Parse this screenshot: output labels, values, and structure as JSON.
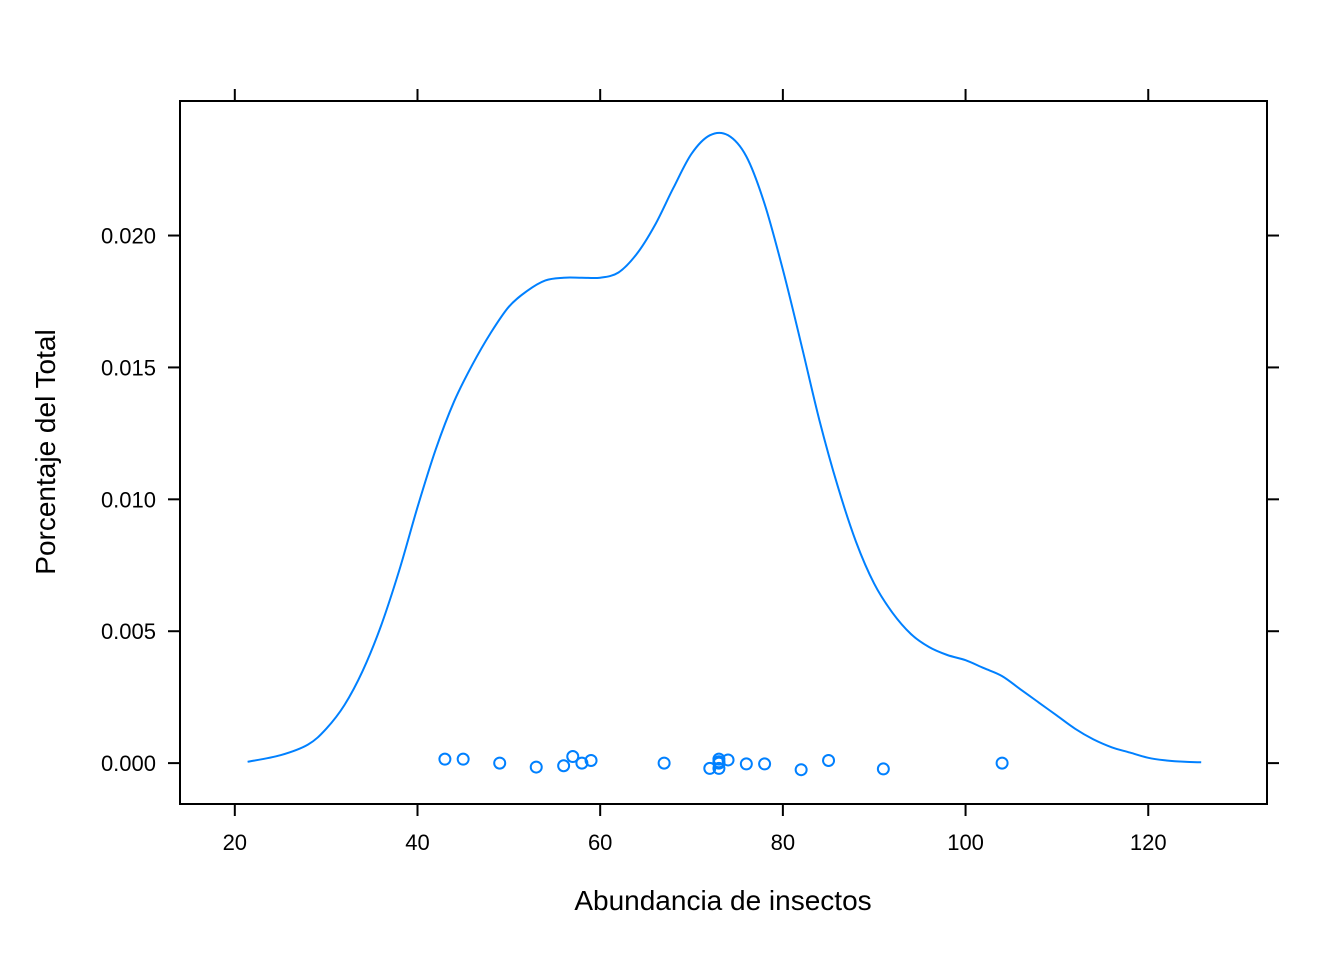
{
  "chart_data": {
    "type": "line",
    "title": "",
    "xlabel": "Abundancia de insectos",
    "ylabel": "Porcentaje del Total",
    "xlim": [
      14,
      133
    ],
    "ylim": [
      -0.00155,
      0.0251
    ],
    "x_ticks": [
      20,
      40,
      60,
      80,
      100,
      120
    ],
    "x_tick_labels": [
      "20",
      "40",
      "60",
      "80",
      "100",
      "120"
    ],
    "y_ticks": [
      0.0,
      0.005,
      0.01,
      0.015,
      0.02
    ],
    "y_tick_labels": [
      "0.000",
      "0.005",
      "0.010",
      "0.015",
      "0.020"
    ],
    "color": "#0080ff",
    "grid": false,
    "legend": "none",
    "series": [
      {
        "kind": "density",
        "x": [
          21.4,
          25,
          28,
          30,
          32,
          34,
          36,
          38,
          40,
          42,
          44,
          46,
          48,
          50,
          52,
          54,
          56,
          58,
          60,
          62,
          64,
          66,
          68,
          70,
          72,
          74,
          76,
          78,
          80,
          82,
          84,
          86,
          88,
          90,
          92,
          94,
          96,
          98,
          100,
          102,
          104,
          106,
          108,
          110,
          112,
          114,
          116,
          118,
          120,
          122,
          124,
          125.8
        ],
        "y": [
          5e-05,
          0.0003,
          0.0007,
          0.0013,
          0.0022,
          0.0035,
          0.0052,
          0.0073,
          0.0097,
          0.0119,
          0.0137,
          0.0151,
          0.0163,
          0.0173,
          0.0179,
          0.0183,
          0.0184,
          0.0184,
          0.0184,
          0.0186,
          0.0193,
          0.0204,
          0.0218,
          0.0231,
          0.0238,
          0.0238,
          0.023,
          0.0212,
          0.0187,
          0.0159,
          0.013,
          0.0105,
          0.0084,
          0.0068,
          0.0057,
          0.0049,
          0.0044,
          0.0041,
          0.0039,
          0.0036,
          0.0033,
          0.0028,
          0.0023,
          0.0018,
          0.0013,
          0.0009,
          0.0006,
          0.0004,
          0.0002,
          0.0001,
          5e-05,
          3e-05
        ]
      },
      {
        "kind": "rug-points",
        "x": [
          43,
          45,
          49,
          53,
          56,
          57,
          58,
          59,
          67,
          72,
          73,
          73,
          73,
          73,
          74,
          76,
          78,
          82,
          85,
          91,
          104
        ],
        "y": [
          0.00015,
          0.00015,
          0.0,
          -0.00015,
          -0.0001,
          0.00025,
          0.0,
          0.0001,
          0.0,
          -0.0002,
          -0.0002,
          5e-05,
          0.00015,
          0.0,
          0.00012,
          -3e-05,
          -3e-05,
          -0.00025,
          0.0001,
          -0.00022,
          0.0
        ]
      }
    ]
  }
}
